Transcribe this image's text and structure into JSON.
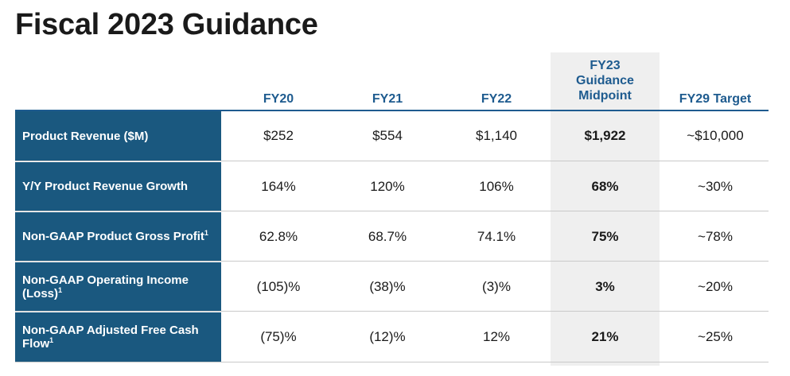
{
  "title": "Fiscal 2023 Guidance",
  "columns": [
    {
      "key": "fy20",
      "label": "FY20"
    },
    {
      "key": "fy21",
      "label": "FY21"
    },
    {
      "key": "fy22",
      "label": "FY22"
    },
    {
      "key": "fy23",
      "label_line1": "FY23",
      "label_line2": "Guidance",
      "label_line3": "Midpoint"
    },
    {
      "key": "fy29",
      "label": "FY29 Target"
    }
  ],
  "rows": [
    {
      "label": "Product Revenue ($M)",
      "footnote": "",
      "values": [
        "$252",
        "$554",
        "$1,140",
        "$1,922",
        "~$10,000"
      ]
    },
    {
      "label": "Y/Y Product Revenue Growth",
      "footnote": "",
      "values": [
        "164%",
        "120%",
        "106%",
        "68%",
        "~30%"
      ]
    },
    {
      "label": "Non-GAAP Product Gross Profit",
      "footnote": "1",
      "values": [
        "62.8%",
        "68.7%",
        "74.1%",
        "75%",
        "~78%"
      ]
    },
    {
      "label": "Non-GAAP Operating Income (Loss)",
      "footnote": "1",
      "values": [
        "(105)%",
        "(38)%",
        "(3)%",
        "3%",
        "~20%"
      ]
    },
    {
      "label": "Non-GAAP Adjusted Free Cash Flow",
      "footnote": "1",
      "values": [
        "(75)%",
        "(12)%",
        "12%",
        "21%",
        "~25%"
      ]
    }
  ],
  "colors": {
    "label_bg": "#1a587f",
    "header_text": "#1e5b8f",
    "highlight_bg": "#efefef"
  }
}
